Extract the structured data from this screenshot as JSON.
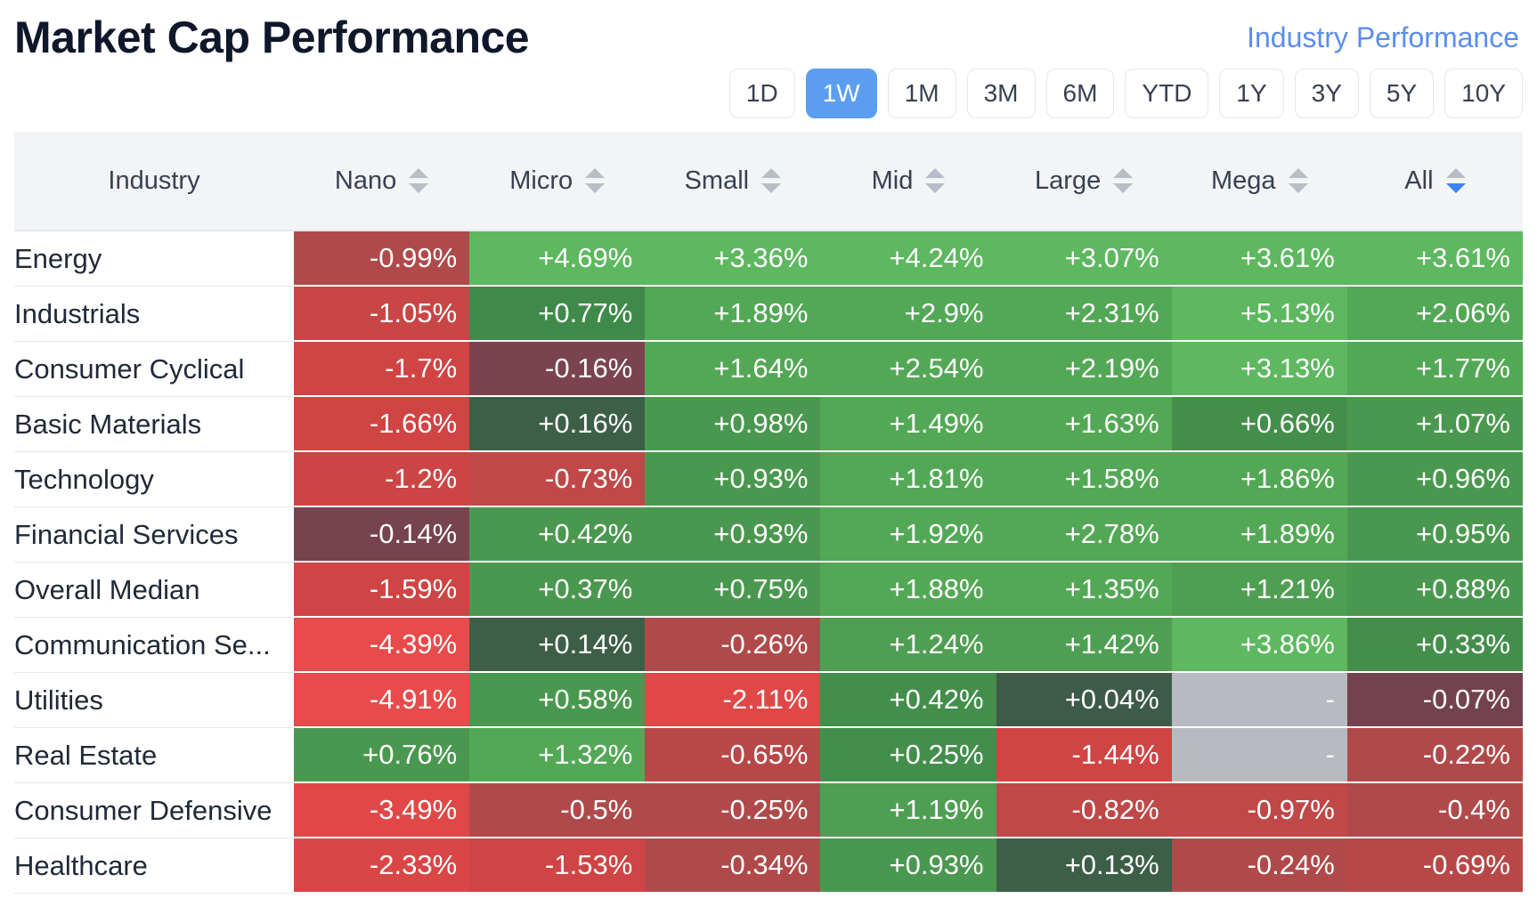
{
  "header": {
    "title": "Market Cap Performance",
    "industry_link": "Industry Performance"
  },
  "periods": [
    "1D",
    "1W",
    "1M",
    "3M",
    "6M",
    "YTD",
    "1Y",
    "3Y",
    "5Y",
    "10Y"
  ],
  "active_period": "1W",
  "table": {
    "columns": [
      "Industry",
      "Nano",
      "Micro",
      "Small",
      "Mid",
      "Large",
      "Mega",
      "All"
    ],
    "active_sort_column": "All",
    "rows": [
      {
        "industry": "Energy",
        "values": [
          "-0.99%",
          "+4.69%",
          "+3.36%",
          "+4.24%",
          "+3.07%",
          "+3.61%",
          "+3.61%"
        ],
        "colors": [
          "#b04a4a",
          "#5db85f",
          "#5db85f",
          "#5db85f",
          "#5db85f",
          "#5db85f",
          "#5db85f"
        ]
      },
      {
        "industry": "Industrials",
        "values": [
          "-1.05%",
          "+0.77%",
          "+1.89%",
          "+2.9%",
          "+2.31%",
          "+5.13%",
          "+2.06%"
        ],
        "colors": [
          "#c84646",
          "#3f8a4a",
          "#53a856",
          "#53a856",
          "#53a856",
          "#5db85f",
          "#53a856"
        ]
      },
      {
        "industry": "Consumer Cyclical",
        "values": [
          "-1.7%",
          "-0.16%",
          "+1.64%",
          "+2.54%",
          "+2.19%",
          "+3.13%",
          "+1.77%"
        ],
        "colors": [
          "#d04444",
          "#7a434f",
          "#53a856",
          "#53a856",
          "#53a856",
          "#5db85f",
          "#53a856"
        ]
      },
      {
        "industry": "Basic Materials",
        "values": [
          "-1.66%",
          "+0.16%",
          "+0.98%",
          "+1.49%",
          "+1.63%",
          "+0.66%",
          "+1.07%"
        ],
        "colors": [
          "#d04444",
          "#3d5f47",
          "#4a984f",
          "#53a856",
          "#53a856",
          "#448e4c",
          "#4a984f"
        ]
      },
      {
        "industry": "Technology",
        "values": [
          "-1.2%",
          "-0.73%",
          "+0.93%",
          "+1.81%",
          "+1.58%",
          "+1.86%",
          "+0.96%"
        ],
        "colors": [
          "#cc4545",
          "#c04848",
          "#4a984f",
          "#53a856",
          "#53a856",
          "#53a856",
          "#4a984f"
        ]
      },
      {
        "industry": "Financial Services",
        "values": [
          "-0.14%",
          "+0.42%",
          "+0.93%",
          "+1.92%",
          "+2.78%",
          "+1.89%",
          "+0.95%"
        ],
        "colors": [
          "#76434f",
          "#4a984f",
          "#4a984f",
          "#53a856",
          "#53a856",
          "#53a856",
          "#4a984f"
        ]
      },
      {
        "industry": "Overall Median",
        "values": [
          "-1.59%",
          "+0.37%",
          "+0.75%",
          "+1.88%",
          "+1.35%",
          "+1.21%",
          "+0.88%"
        ],
        "colors": [
          "#cf4444",
          "#4a984f",
          "#4a984f",
          "#53a856",
          "#53a856",
          "#4f9f53",
          "#4a984f"
        ]
      },
      {
        "industry": "Communication Se...",
        "values": [
          "-4.39%",
          "+0.14%",
          "-0.26%",
          "+1.24%",
          "+1.42%",
          "+3.86%",
          "+0.33%"
        ],
        "colors": [
          "#e84b4b",
          "#3d5f47",
          "#b04a4a",
          "#4f9f53",
          "#4f9f53",
          "#5db85f",
          "#448e4c"
        ]
      },
      {
        "industry": "Utilities",
        "values": [
          "-4.91%",
          "+0.58%",
          "-2.11%",
          "+0.42%",
          "+0.04%",
          "-",
          "-0.07%"
        ],
        "colors": [
          "#e84b4b",
          "#4a984f",
          "#e04848",
          "#448e4c",
          "#3e5a48",
          "#b8bac2",
          "#73424e"
        ]
      },
      {
        "industry": "Real Estate",
        "values": [
          "+0.76%",
          "+1.32%",
          "-0.65%",
          "+0.25%",
          "-1.44%",
          "-",
          "-0.22%"
        ],
        "colors": [
          "#4a984f",
          "#53a856",
          "#b84848",
          "#448e4c",
          "#d04444",
          "#b8bac2",
          "#b04a4a"
        ]
      },
      {
        "industry": "Consumer Defensive",
        "values": [
          "-3.49%",
          "-0.5%",
          "-0.25%",
          "+1.19%",
          "-0.82%",
          "-0.97%",
          "-0.4%"
        ],
        "colors": [
          "#e04848",
          "#b04a4a",
          "#b04a4a",
          "#4f9f53",
          "#c04848",
          "#c04848",
          "#b04a4a"
        ]
      },
      {
        "industry": "Healthcare",
        "values": [
          "-2.33%",
          "-1.53%",
          "-0.34%",
          "+0.93%",
          "+0.13%",
          "-0.24%",
          "-0.69%"
        ],
        "colors": [
          "#d94646",
          "#cf4444",
          "#b04a4a",
          "#4a984f",
          "#3d5f47",
          "#b04a4a",
          "#b84848"
        ]
      }
    ]
  }
}
